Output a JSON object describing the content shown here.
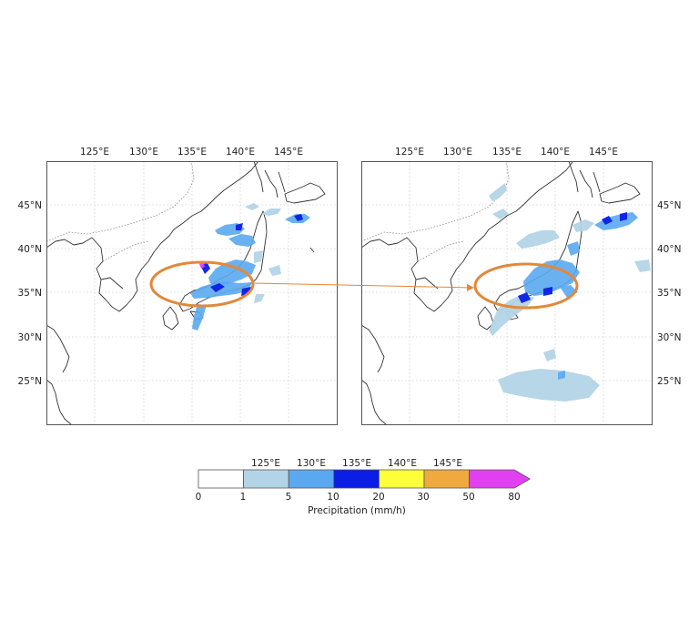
{
  "maps": [
    {
      "id": "left",
      "lon_labels": [
        "125°E",
        "130°E",
        "135°E",
        "140°E",
        "145°E"
      ],
      "lat_labels": [
        "45°N",
        "40°N",
        "35°N",
        "30°N",
        "25°N"
      ],
      "lat_axis_side": "left",
      "highlight": "ellipse"
    },
    {
      "id": "right",
      "lon_labels": [
        "125°E",
        "130°E",
        "135°E",
        "140°E",
        "145°E"
      ],
      "lat_labels": [
        "45°N",
        "40°N",
        "35°N",
        "30°N",
        "25°N"
      ],
      "lat_axis_side": "right",
      "highlight": "ellipse"
    }
  ],
  "colorbar": {
    "top_labels": [
      "125°E",
      "130°E",
      "135°E",
      "140°E",
      "145°E"
    ],
    "ticks": [
      "0",
      "1",
      "5",
      "10",
      "20",
      "30",
      "50",
      "80"
    ],
    "label": "Precipitation (mm/h)",
    "colors": [
      "#ffffff",
      "#b3d4e6",
      "#5aa8ef",
      "#0a1ee6",
      "#ffff3a",
      "#f0a93e",
      "#e040f0"
    ],
    "extend": "max"
  },
  "colors": {
    "highlight": "#e2883a",
    "coast": "#333333",
    "border": "#888888",
    "grid": "#cccccc"
  }
}
